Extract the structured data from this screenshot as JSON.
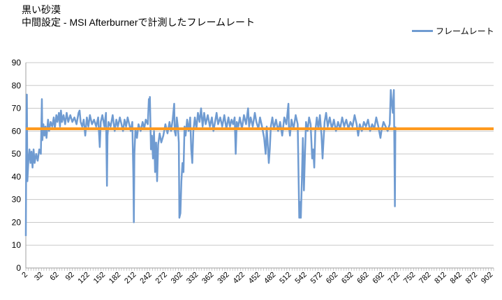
{
  "chart_data": {
    "type": "line",
    "title": "黒い砂漠",
    "subtitle": "中間設定 - MSI Afterburnerで計測したフレームレート",
    "ylim": [
      0,
      90
    ],
    "y_ticks": [
      0,
      10,
      20,
      30,
      40,
      50,
      60,
      70,
      80,
      90
    ],
    "x_range": [
      2,
      907
    ],
    "x_ticks": [
      2,
      32,
      62,
      92,
      122,
      152,
      182,
      212,
      242,
      272,
      302,
      332,
      362,
      392,
      422,
      452,
      482,
      512,
      542,
      572,
      602,
      632,
      662,
      692,
      722,
      752,
      782,
      812,
      842,
      872,
      902
    ],
    "grid": true,
    "legend_position": "top-right",
    "series": [
      {
        "name": "フレームレート",
        "color": "#6f9bd1",
        "points": [
          [
            2,
            14
          ],
          [
            3,
            63
          ],
          [
            4,
            76
          ],
          [
            5,
            38
          ],
          [
            7,
            47
          ],
          [
            9,
            52
          ],
          [
            11,
            46
          ],
          [
            13,
            51
          ],
          [
            15,
            44
          ],
          [
            17,
            52
          ],
          [
            19,
            46
          ],
          [
            22,
            50
          ],
          [
            25,
            47
          ],
          [
            28,
            52
          ],
          [
            31,
            50
          ],
          [
            33,
            74
          ],
          [
            34,
            56
          ],
          [
            36,
            63
          ],
          [
            38,
            58
          ],
          [
            40,
            62
          ],
          [
            42,
            57
          ],
          [
            45,
            65
          ],
          [
            47,
            60
          ],
          [
            50,
            64
          ],
          [
            53,
            62
          ],
          [
            56,
            66
          ],
          [
            58,
            61
          ],
          [
            61,
            67
          ],
          [
            63,
            64
          ],
          [
            66,
            68
          ],
          [
            68,
            62
          ],
          [
            70,
            69
          ],
          [
            72,
            64
          ],
          [
            75,
            67
          ],
          [
            78,
            63
          ],
          [
            81,
            68
          ],
          [
            84,
            64
          ],
          [
            88,
            67
          ],
          [
            92,
            64
          ],
          [
            96,
            66
          ],
          [
            100,
            63
          ],
          [
            104,
            68
          ],
          [
            106,
            69
          ],
          [
            108,
            64
          ],
          [
            111,
            62
          ],
          [
            114,
            65
          ],
          [
            117,
            58
          ],
          [
            120,
            66
          ],
          [
            123,
            62
          ],
          [
            126,
            67
          ],
          [
            130,
            63
          ],
          [
            134,
            65
          ],
          [
            138,
            62
          ],
          [
            142,
            66
          ],
          [
            145,
            53
          ],
          [
            147,
            64
          ],
          [
            150,
            67
          ],
          [
            154,
            62
          ],
          [
            157,
            68
          ],
          [
            159,
            36
          ],
          [
            160,
            58
          ],
          [
            162,
            64
          ],
          [
            166,
            62
          ],
          [
            170,
            67
          ],
          [
            174,
            60
          ],
          [
            177,
            65
          ],
          [
            180,
            62
          ],
          [
            184,
            66
          ],
          [
            187,
            63
          ],
          [
            190,
            60
          ],
          [
            193,
            65
          ],
          [
            196,
            62
          ],
          [
            199,
            66
          ],
          [
            202,
            63
          ],
          [
            205,
            60
          ],
          [
            208,
            64
          ],
          [
            210,
            40
          ],
          [
            211,
            20
          ],
          [
            212,
            50
          ],
          [
            214,
            61
          ],
          [
            217,
            57
          ],
          [
            220,
            63
          ],
          [
            224,
            60
          ],
          [
            228,
            64
          ],
          [
            231,
            61
          ],
          [
            234,
            65
          ],
          [
            238,
            63
          ],
          [
            240,
            74
          ],
          [
            241,
            70
          ],
          [
            242,
            75
          ],
          [
            244,
            52
          ],
          [
            246,
            58
          ],
          [
            248,
            48
          ],
          [
            250,
            60
          ],
          [
            252,
            42
          ],
          [
            254,
            55
          ],
          [
            256,
            38
          ],
          [
            258,
            54
          ],
          [
            261,
            59
          ],
          [
            264,
            55
          ],
          [
            268,
            58
          ],
          [
            272,
            63
          ],
          [
            276,
            59
          ],
          [
            280,
            64
          ],
          [
            283,
            60
          ],
          [
            286,
            65
          ],
          [
            289,
            72
          ],
          [
            290,
            60
          ],
          [
            292,
            58
          ],
          [
            294,
            66
          ],
          [
            296,
            62
          ],
          [
            298,
            55
          ],
          [
            299,
            22
          ],
          [
            301,
            24
          ],
          [
            303,
            38
          ],
          [
            305,
            46
          ],
          [
            307,
            42
          ],
          [
            309,
            62
          ],
          [
            311,
            58
          ],
          [
            314,
            65
          ],
          [
            317,
            60
          ],
          [
            320,
            66
          ],
          [
            322,
            52
          ],
          [
            324,
            46
          ],
          [
            326,
            60
          ],
          [
            329,
            66
          ],
          [
            332,
            61
          ],
          [
            335,
            68
          ],
          [
            338,
            64
          ],
          [
            341,
            70
          ],
          [
            344,
            62
          ],
          [
            347,
            68
          ],
          [
            350,
            63
          ],
          [
            354,
            67
          ],
          [
            358,
            62
          ],
          [
            362,
            66
          ],
          [
            365,
            60
          ],
          [
            368,
            64
          ],
          [
            371,
            68
          ],
          [
            374,
            63
          ],
          [
            378,
            66
          ],
          [
            382,
            62
          ],
          [
            386,
            67
          ],
          [
            390,
            61
          ],
          [
            394,
            66
          ],
          [
            397,
            62
          ],
          [
            400,
            65
          ],
          [
            403,
            63
          ],
          [
            406,
            66
          ],
          [
            408,
            50
          ],
          [
            410,
            64
          ],
          [
            413,
            62
          ],
          [
            416,
            66
          ],
          [
            420,
            61
          ],
          [
            424,
            67
          ],
          [
            428,
            63
          ],
          [
            432,
            70
          ],
          [
            434,
            62
          ],
          [
            437,
            66
          ],
          [
            441,
            62
          ],
          [
            445,
            68
          ],
          [
            448,
            64
          ],
          [
            452,
            61
          ],
          [
            455,
            66
          ],
          [
            459,
            62
          ],
          [
            463,
            57
          ],
          [
            466,
            50
          ],
          [
            468,
            62
          ],
          [
            470,
            54
          ],
          [
            472,
            46
          ],
          [
            474,
            52
          ],
          [
            476,
            62
          ],
          [
            479,
            66
          ],
          [
            482,
            61
          ],
          [
            486,
            65
          ],
          [
            490,
            60
          ],
          [
            494,
            64
          ],
          [
            498,
            58
          ],
          [
            502,
            66
          ],
          [
            506,
            63
          ],
          [
            510,
            72
          ],
          [
            511,
            62
          ],
          [
            513,
            58
          ],
          [
            516,
            65
          ],
          [
            520,
            61
          ],
          [
            524,
            67
          ],
          [
            528,
            63
          ],
          [
            531,
            22
          ],
          [
            532,
            29
          ],
          [
            534,
            22
          ],
          [
            536,
            38
          ],
          [
            538,
            57
          ],
          [
            540,
            34
          ],
          [
            542,
            50
          ],
          [
            544,
            64
          ],
          [
            547,
            60
          ],
          [
            550,
            66
          ],
          [
            553,
            63
          ],
          [
            556,
            48
          ],
          [
            558,
            52
          ],
          [
            560,
            44
          ],
          [
            562,
            60
          ],
          [
            565,
            66
          ],
          [
            568,
            61
          ],
          [
            571,
            67
          ],
          [
            574,
            58
          ],
          [
            576,
            48
          ],
          [
            578,
            56
          ],
          [
            580,
            64
          ],
          [
            583,
            68
          ],
          [
            586,
            62
          ],
          [
            590,
            66
          ],
          [
            594,
            61
          ],
          [
            598,
            65
          ],
          [
            602,
            60
          ],
          [
            606,
            64
          ],
          [
            610,
            61
          ],
          [
            614,
            66
          ],
          [
            618,
            62
          ],
          [
            622,
            65
          ],
          [
            626,
            61
          ],
          [
            630,
            64
          ],
          [
            634,
            62
          ],
          [
            638,
            67
          ],
          [
            642,
            63
          ],
          [
            645,
            58
          ],
          [
            648,
            63
          ],
          [
            652,
            60
          ],
          [
            656,
            64
          ],
          [
            660,
            62
          ],
          [
            664,
            65
          ],
          [
            668,
            60
          ],
          [
            672,
            63
          ],
          [
            676,
            61
          ],
          [
            680,
            66
          ],
          [
            684,
            62
          ],
          [
            688,
            57
          ],
          [
            690,
            60
          ],
          [
            694,
            64
          ],
          [
            698,
            62
          ],
          [
            702,
            60
          ],
          [
            706,
            63
          ],
          [
            708,
            78
          ],
          [
            710,
            72
          ],
          [
            712,
            68
          ],
          [
            714,
            78
          ],
          [
            716,
            27
          ],
          [
            717,
            62
          ]
        ]
      }
    ],
    "reference_line": {
      "value": 61,
      "color": "#ff9a1f"
    }
  }
}
